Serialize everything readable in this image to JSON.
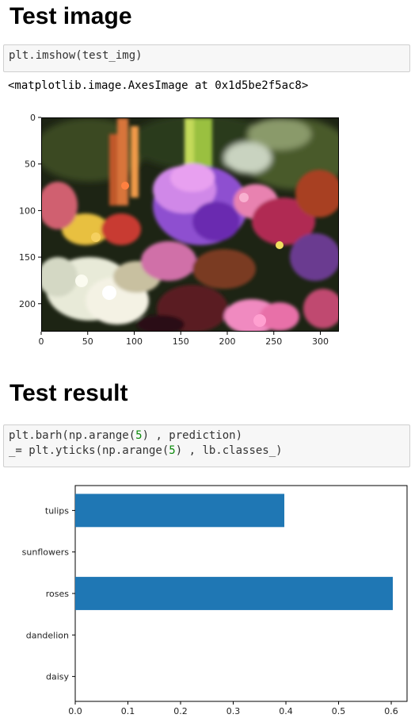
{
  "section1": {
    "title": "Test image",
    "code": "plt.imshow(test_img)",
    "output": "<matplotlib.image.AxesImage at 0x1d5be2f5ac8>"
  },
  "image_axes": {
    "x_ticks": [
      "0",
      "50",
      "100",
      "150",
      "200",
      "250",
      "300"
    ],
    "y_ticks": [
      "0",
      "50",
      "100",
      "150",
      "200"
    ]
  },
  "section2": {
    "title": "Test result",
    "code_line1_a": "plt.barh(np.arange(",
    "code_line1_num": "5",
    "code_line1_b": ") , prediction)",
    "code_line2_a": "_= plt.yticks(np.arange(",
    "code_line2_num": "5",
    "code_line2_b": ") , lb.classes_)"
  },
  "chart_data": {
    "type": "bar",
    "orientation": "horizontal",
    "categories": [
      "daisy",
      "dandelion",
      "roses",
      "sunflowers",
      "tulips"
    ],
    "values": [
      0.0,
      0.0,
      0.603,
      0.0,
      0.397
    ],
    "xlim": [
      0,
      0.63
    ],
    "x_ticks": [
      "0.0",
      "0.1",
      "0.2",
      "0.3",
      "0.4",
      "0.5",
      "0.6"
    ],
    "title": "",
    "xlabel": "",
    "ylabel": "",
    "bar_color": "#1f77b4"
  }
}
